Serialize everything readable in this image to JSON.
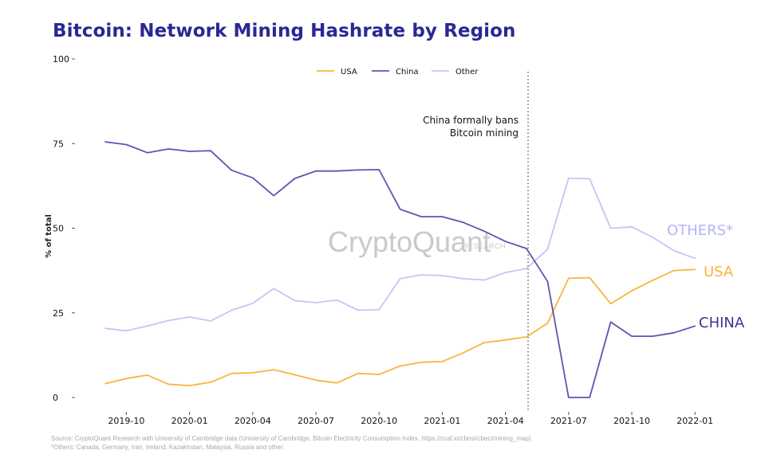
{
  "chart_data": {
    "type": "line",
    "title": "Bitcoin: Network Mining Hashrate by Region",
    "ylabel": "% of total",
    "xlabel": "",
    "ylim": [
      0,
      100
    ],
    "y_ticks": [
      0,
      25,
      50,
      75,
      100
    ],
    "x_ticks": [
      "2019-10",
      "2020-01",
      "2020-04",
      "2020-07",
      "2020-10",
      "2021-01",
      "2021-04",
      "2021-07",
      "2021-10",
      "2022-01"
    ],
    "x": [
      "2019-09",
      "2019-10",
      "2019-11",
      "2019-12",
      "2020-01",
      "2020-02",
      "2020-03",
      "2020-04",
      "2020-05",
      "2020-06",
      "2020-07",
      "2020-08",
      "2020-09",
      "2020-10",
      "2020-11",
      "2020-12",
      "2021-01",
      "2021-02",
      "2021-03",
      "2021-04",
      "2021-05",
      "2021-06",
      "2021-07",
      "2021-08",
      "2021-09",
      "2021-10",
      "2021-11",
      "2021-12",
      "2022-01"
    ],
    "series": [
      {
        "name": "USA",
        "color": "#f9b43a",
        "end_label": "USA",
        "values": [
          4.1,
          5.6,
          6.6,
          3.9,
          3.5,
          4.5,
          7.1,
          7.3,
          8.2,
          6.7,
          5.1,
          4.3,
          7.1,
          6.8,
          9.3,
          10.4,
          10.6,
          13.2,
          16.2,
          17.0,
          17.9,
          21.9,
          35.2,
          35.4,
          27.7,
          31.5,
          34.6,
          37.5,
          37.8
        ]
      },
      {
        "name": "China",
        "color": "#5c55b2",
        "end_label": "CHINA",
        "values": [
          75.5,
          74.7,
          72.3,
          73.4,
          72.7,
          72.9,
          67.1,
          64.9,
          59.6,
          64.7,
          66.9,
          66.9,
          67.2,
          67.3,
          55.6,
          53.4,
          53.4,
          51.7,
          49.1,
          46.1,
          44.0,
          34.3,
          0.0,
          0.0,
          22.3,
          18.1,
          18.1,
          19.1,
          21.1
        ]
      },
      {
        "name": "Other",
        "color": "#c4c5f7",
        "end_label": "OTHERS*",
        "values": [
          20.4,
          19.7,
          21.1,
          22.7,
          23.8,
          22.6,
          25.8,
          27.8,
          32.2,
          28.6,
          28.0,
          28.8,
          25.8,
          25.9,
          35.1,
          36.2,
          36.0,
          35.1,
          34.7,
          36.9,
          38.1,
          43.8,
          64.8,
          64.6,
          50.0,
          50.4,
          47.3,
          43.4,
          41.1
        ]
      }
    ],
    "annotation": {
      "lines": [
        "China formally bans",
        "Bitcoin mining"
      ],
      "x": "2021-05"
    },
    "legend": {
      "position": "top-center",
      "entries": [
        "USA",
        "China",
        "Other"
      ]
    },
    "grid": false
  },
  "watermark": {
    "brand": "CryptoQuant",
    "sub": "RESEARCH"
  },
  "source": {
    "line1": "Source: CryptoQuant Research with University of Cambridge data (University of Cambridge, Bitcoin Electricity Consumption Index, https://ccaf.io/cbnsi/cbeci/mining_map).",
    "line2": "*Others: Canada, Germany, Iran, Ireland, Kazakhstan, Malaysia, Russia and other."
  }
}
